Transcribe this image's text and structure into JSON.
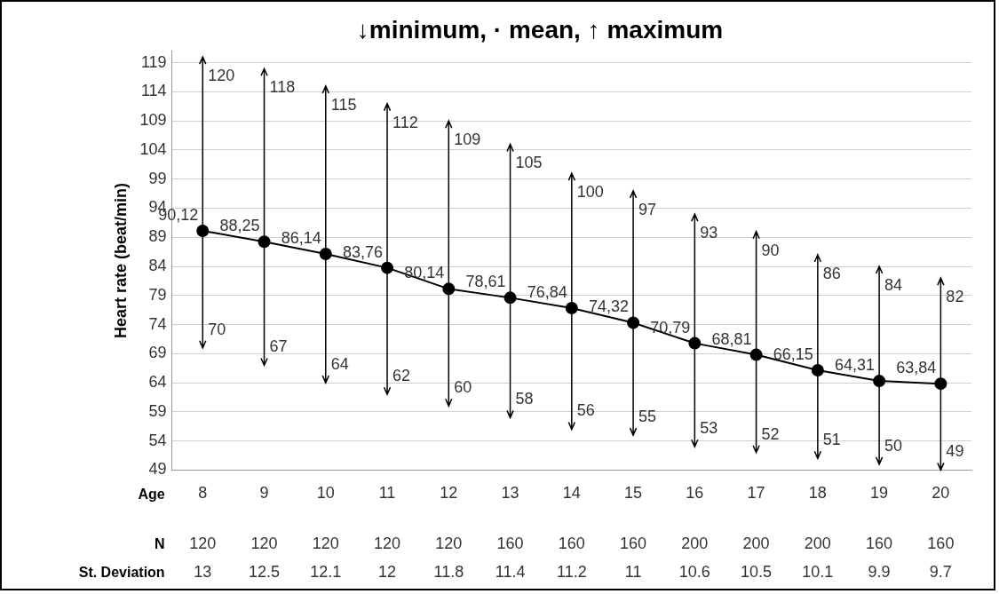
{
  "chart_data": {
    "type": "line",
    "title": "↓minimum, · mean, ↑ maximum",
    "ylabel": "Heart rate (beat/min)",
    "xlabel": "Age",
    "categories": [
      "8",
      "9",
      "10",
      "11",
      "12",
      "13",
      "14",
      "15",
      "16",
      "17",
      "18",
      "19",
      "20"
    ],
    "series": [
      {
        "color": "#000000",
        "values": [
          90.12,
          88.25,
          86.14,
          83.76,
          80.14,
          78.61,
          76.84,
          74.32,
          70.79,
          68.81,
          66.15,
          64.31,
          63.84
        ],
        "errors": [
          [
            70,
            120
          ],
          [
            67,
            118
          ],
          [
            64,
            115
          ],
          [
            62,
            112
          ],
          [
            60,
            109
          ],
          [
            58,
            105
          ],
          [
            56,
            100
          ],
          [
            55,
            97
          ],
          [
            53,
            93
          ],
          [
            52,
            90
          ],
          [
            51,
            86
          ],
          [
            50,
            84
          ],
          [
            49,
            82
          ]
        ],
        "value_labels": [
          "90,12",
          "88,25",
          "86,14",
          "83,76",
          "80,14",
          "78,61",
          "76,84",
          "74,32",
          "70,79",
          "68,81",
          "66,15",
          "64,31",
          "63,84"
        ]
      }
    ],
    "ylim": [
      49,
      121
    ],
    "yticks": [
      49,
      54,
      59,
      64,
      69,
      74,
      79,
      84,
      89,
      94,
      99,
      104,
      109,
      114,
      119
    ],
    "grid": "y",
    "legend": false,
    "marker": "circle",
    "line_style": "solid",
    "annotations": [
      {
        "text": "120",
        "x": "8",
        "y": 120
      },
      {
        "text": "118",
        "x": "9",
        "y": 118
      },
      {
        "text": "115",
        "x": "10",
        "y": 115
      },
      {
        "text": "112",
        "x": "11",
        "y": 112
      },
      {
        "text": "109",
        "x": "12",
        "y": 109
      },
      {
        "text": "105",
        "x": "13",
        "y": 105
      },
      {
        "text": "100",
        "x": "14",
        "y": 100
      },
      {
        "text": "97",
        "x": "15",
        "y": 97
      },
      {
        "text": "93",
        "x": "16",
        "y": 93
      },
      {
        "text": "90",
        "x": "17",
        "y": 90
      },
      {
        "text": "86",
        "x": "18",
        "y": 86
      },
      {
        "text": "84",
        "x": "19",
        "y": 84
      },
      {
        "text": "82",
        "x": "20",
        "y": 82
      },
      {
        "text": "70",
        "x": "8",
        "y": 70
      },
      {
        "text": "67",
        "x": "9",
        "y": 67
      },
      {
        "text": "64",
        "x": "10",
        "y": 64
      },
      {
        "text": "62",
        "x": "11",
        "y": 62
      },
      {
        "text": "60",
        "x": "12",
        "y": 60
      },
      {
        "text": "58",
        "x": "13",
        "y": 58
      },
      {
        "text": "56",
        "x": "14",
        "y": 56
      },
      {
        "text": "55",
        "x": "15",
        "y": 55
      },
      {
        "text": "53",
        "x": "16",
        "y": 53
      },
      {
        "text": "52",
        "x": "17",
        "y": 52
      },
      {
        "text": "51",
        "x": "18",
        "y": 51
      },
      {
        "text": "50",
        "x": "19",
        "y": 50
      },
      {
        "text": "49",
        "x": "20",
        "y": 49
      },
      "N",
      "120",
      "120",
      "120",
      "120",
      "120",
      "160",
      "160",
      "160",
      "200",
      "200",
      "200",
      "160",
      "160",
      "St. Deviation",
      "13",
      "12.5",
      "12.1",
      "12",
      "11.8",
      "11.4",
      "11.2",
      "11",
      "10.6",
      "10.5",
      "10.1",
      "9.9",
      "9.7"
    ]
  }
}
